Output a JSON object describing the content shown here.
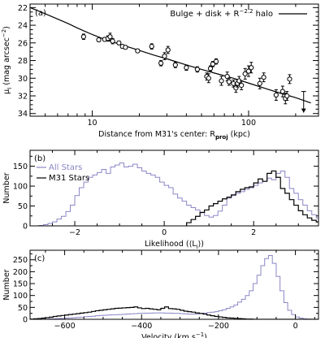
{
  "chart_data": [
    {
      "type": "scatter",
      "panel_label": "(a)",
      "xscale": "log",
      "xlim": [
        4,
        280
      ],
      "ylim": [
        34.3,
        21.6
      ],
      "y_inverted": true,
      "xticks": [
        10,
        100
      ],
      "xtick_labels": [
        "10",
        "100"
      ],
      "yticks": [
        22,
        24,
        26,
        28,
        30,
        32,
        34
      ],
      "ytick_labels": [
        "22",
        "24",
        "26",
        "28",
        "30",
        "32",
        "34"
      ],
      "xlabel_main": "Distance from M31's center: R",
      "xlabel_sub": "proj",
      "xlabel_unit": " (kpc)",
      "ylabel_main": "μ",
      "ylabel_sub": "I",
      "ylabel_unit": " (mag arcsec",
      "ylabel_sup": "−2",
      "ylabel_close": ")",
      "model": {
        "name": "Bulge + disk + R",
        "name_sup": "−2.2",
        "name_end": " halo",
        "x": [
          4,
          5,
          6,
          7,
          8,
          9,
          10,
          12,
          15,
          20,
          25,
          30,
          40,
          50,
          60,
          80,
          100,
          130,
          160,
          200,
          250
        ],
        "y": [
          22.0,
          22.7,
          23.3,
          23.8,
          24.3,
          24.7,
          25.05,
          25.6,
          26.15,
          26.85,
          27.4,
          27.8,
          28.5,
          29.0,
          29.4,
          30.0,
          30.55,
          31.2,
          31.7,
          32.2,
          32.8
        ]
      },
      "points": [
        {
          "x": 8.8,
          "y": 25.3,
          "err": 0.3
        },
        {
          "x": 11.0,
          "y": 25.65,
          "err": 0.2
        },
        {
          "x": 12.0,
          "y": 25.6,
          "err": 0.2
        },
        {
          "x": 12.6,
          "y": 25.5,
          "err": 0.3
        },
        {
          "x": 13.0,
          "y": 25.3,
          "err": 0.4
        },
        {
          "x": 13.5,
          "y": 25.8,
          "err": 0.3
        },
        {
          "x": 14.8,
          "y": 26.0,
          "err": 0.2
        },
        {
          "x": 15.6,
          "y": 26.4,
          "err": 0.2
        },
        {
          "x": 16.3,
          "y": 26.5,
          "err": 0.2
        },
        {
          "x": 19.5,
          "y": 26.9,
          "err": 0.2
        },
        {
          "x": 24.0,
          "y": 26.4,
          "err": 0.3
        },
        {
          "x": 27.5,
          "y": 28.3,
          "err": 0.3
        },
        {
          "x": 29.0,
          "y": 27.5,
          "err": 0.4
        },
        {
          "x": 30.5,
          "y": 26.8,
          "err": 0.4
        },
        {
          "x": 34.0,
          "y": 28.5,
          "err": 0.3
        },
        {
          "x": 40.0,
          "y": 28.8,
          "err": 0.3
        },
        {
          "x": 47.0,
          "y": 29.0,
          "err": 0.3
        },
        {
          "x": 54.0,
          "y": 29.8,
          "err": 0.4
        },
        {
          "x": 55.5,
          "y": 30.0,
          "err": 0.5
        },
        {
          "x": 57.0,
          "y": 28.9,
          "err": 0.3
        },
        {
          "x": 59.0,
          "y": 28.4,
          "err": 0.3
        },
        {
          "x": 62.0,
          "y": 28.1,
          "err": 0.3
        },
        {
          "x": 67.0,
          "y": 30.3,
          "err": 0.5
        },
        {
          "x": 73.0,
          "y": 29.8,
          "err": 0.5
        },
        {
          "x": 75.0,
          "y": 30.4,
          "err": 0.4
        },
        {
          "x": 80.0,
          "y": 30.6,
          "err": 0.4
        },
        {
          "x": 83.0,
          "y": 31.1,
          "err": 0.5
        },
        {
          "x": 85.0,
          "y": 30.6,
          "err": 0.4
        },
        {
          "x": 87.0,
          "y": 30.3,
          "err": 0.5
        },
        {
          "x": 90.0,
          "y": 30.8,
          "err": 0.5
        },
        {
          "x": 95.0,
          "y": 29.5,
          "err": 0.6
        },
        {
          "x": 100.0,
          "y": 29.2,
          "err": 0.6
        },
        {
          "x": 104.0,
          "y": 28.8,
          "err": 0.6
        },
        {
          "x": 118.0,
          "y": 30.6,
          "err": 0.6
        },
        {
          "x": 125.0,
          "y": 29.9,
          "err": 0.5
        },
        {
          "x": 150.0,
          "y": 31.9,
          "err": 0.6
        },
        {
          "x": 165.0,
          "y": 31.5,
          "err": 0.6
        },
        {
          "x": 172.0,
          "y": 32.3,
          "err": 0.6
        },
        {
          "x": 176.0,
          "y": 32.0,
          "err": 0.5
        },
        {
          "x": 183.0,
          "y": 30.1,
          "err": 0.5
        }
      ],
      "upper_limit": {
        "x": 225,
        "y": 31.5,
        "arrow_to": 33.9
      },
      "legend_loc": "top-right",
      "grid": false
    },
    {
      "type": "histogram",
      "panel_label": "(b)",
      "xlim": [
        -3.0,
        3.45
      ],
      "ylim": [
        0,
        190
      ],
      "xticks": [
        -2,
        0,
        2
      ],
      "xtick_labels": [
        "−2",
        "0",
        "2"
      ],
      "yticks": [
        0,
        50,
        100,
        150
      ],
      "ytick_labels": [
        "0",
        "50",
        "100",
        "150"
      ],
      "xlabel_main": "Likelihood (⟨L",
      "xlabel_sub": "i",
      "xlabel_end": "⟩)",
      "ylabel": "Number",
      "legend_loc": "top-left",
      "bin_width": 0.1,
      "series": [
        {
          "name": "All Stars",
          "color": "#8a86c6",
          "x_start": -2.9,
          "values": [
            0,
            1,
            3,
            6,
            10,
            17,
            24,
            36,
            52,
            76,
            96,
            110,
            122,
            128,
            134,
            142,
            132,
            148,
            153,
            158,
            148,
            150,
            155,
            146,
            138,
            132,
            128,
            122,
            110,
            102,
            96,
            80,
            70,
            62,
            52,
            46,
            40,
            33,
            26,
            22,
            26,
            37,
            52,
            70,
            76,
            82,
            86,
            92,
            96,
            102,
            108,
            112,
            120,
            116,
            132,
            138,
            122,
            94,
            82,
            66,
            52,
            38,
            28,
            20,
            14,
            10,
            6,
            3,
            2,
            1,
            0
          ]
        },
        {
          "name": "M31 Stars",
          "color": "#000000",
          "x_start": 0.5,
          "values": [
            8,
            16,
            24,
            34,
            40,
            50,
            56,
            62,
            68,
            72,
            78,
            86,
            92,
            96,
            98,
            108,
            118,
            112,
            132,
            138,
            122,
            94,
            82,
            66,
            52,
            38,
            28,
            20,
            14,
            10,
            6,
            3,
            2,
            1
          ]
        }
      ],
      "grid": false
    },
    {
      "type": "histogram",
      "panel_label": "(c)",
      "xlim": [
        -690,
        60
      ],
      "ylim": [
        0,
        290
      ],
      "xticks": [
        -600,
        -400,
        -200,
        0
      ],
      "xtick_labels": [
        "−600",
        "−400",
        "−200",
        "0"
      ],
      "yticks": [
        0,
        50,
        100,
        150,
        200,
        250
      ],
      "ytick_labels": [
        "0",
        "50",
        "100",
        "150",
        "200",
        "250"
      ],
      "xlabel_main": "Velocity (km s",
      "xlabel_sup": "−1",
      "xlabel_end": ")",
      "ylabel": "Number",
      "bin_width": 10,
      "series": [
        {
          "name": "All Stars",
          "color": "#8a86c6",
          "x_start": -690,
          "values": [
            0,
            0,
            0,
            1,
            1,
            2,
            2,
            3,
            4,
            5,
            6,
            7,
            8,
            9,
            11,
            12,
            13,
            15,
            16,
            17,
            18,
            19,
            19,
            20,
            21,
            22,
            23,
            24,
            25,
            25,
            26,
            26,
            27,
            27,
            27,
            26,
            26,
            25,
            25,
            24,
            23,
            22,
            22,
            22,
            24,
            26,
            28,
            30,
            32,
            36,
            40,
            46,
            52,
            60,
            72,
            84,
            100,
            120,
            150,
            185,
            225,
            255,
            268,
            235,
            180,
            120,
            70,
            38,
            20,
            10,
            5,
            2,
            1,
            0,
            0
          ]
        },
        {
          "name": "M31 Stars",
          "color": "#000000",
          "x_start": -690,
          "values": [
            1,
            2,
            3,
            5,
            7,
            9,
            12,
            14,
            16,
            18,
            20,
            22,
            24,
            26,
            28,
            30,
            33,
            36,
            38,
            40,
            42,
            44,
            46,
            47,
            48,
            49,
            50,
            52,
            48,
            45,
            46,
            44,
            42,
            40,
            46,
            52,
            45,
            44,
            42,
            38,
            34,
            32,
            30,
            27,
            25,
            22,
            18,
            15,
            12,
            10,
            8,
            6,
            5,
            4,
            3,
            2,
            1,
            1,
            0,
            0,
            0,
            0,
            0,
            0,
            0,
            0,
            0,
            0,
            0,
            0,
            0,
            0,
            0,
            0,
            0
          ]
        }
      ],
      "grid": false
    }
  ]
}
